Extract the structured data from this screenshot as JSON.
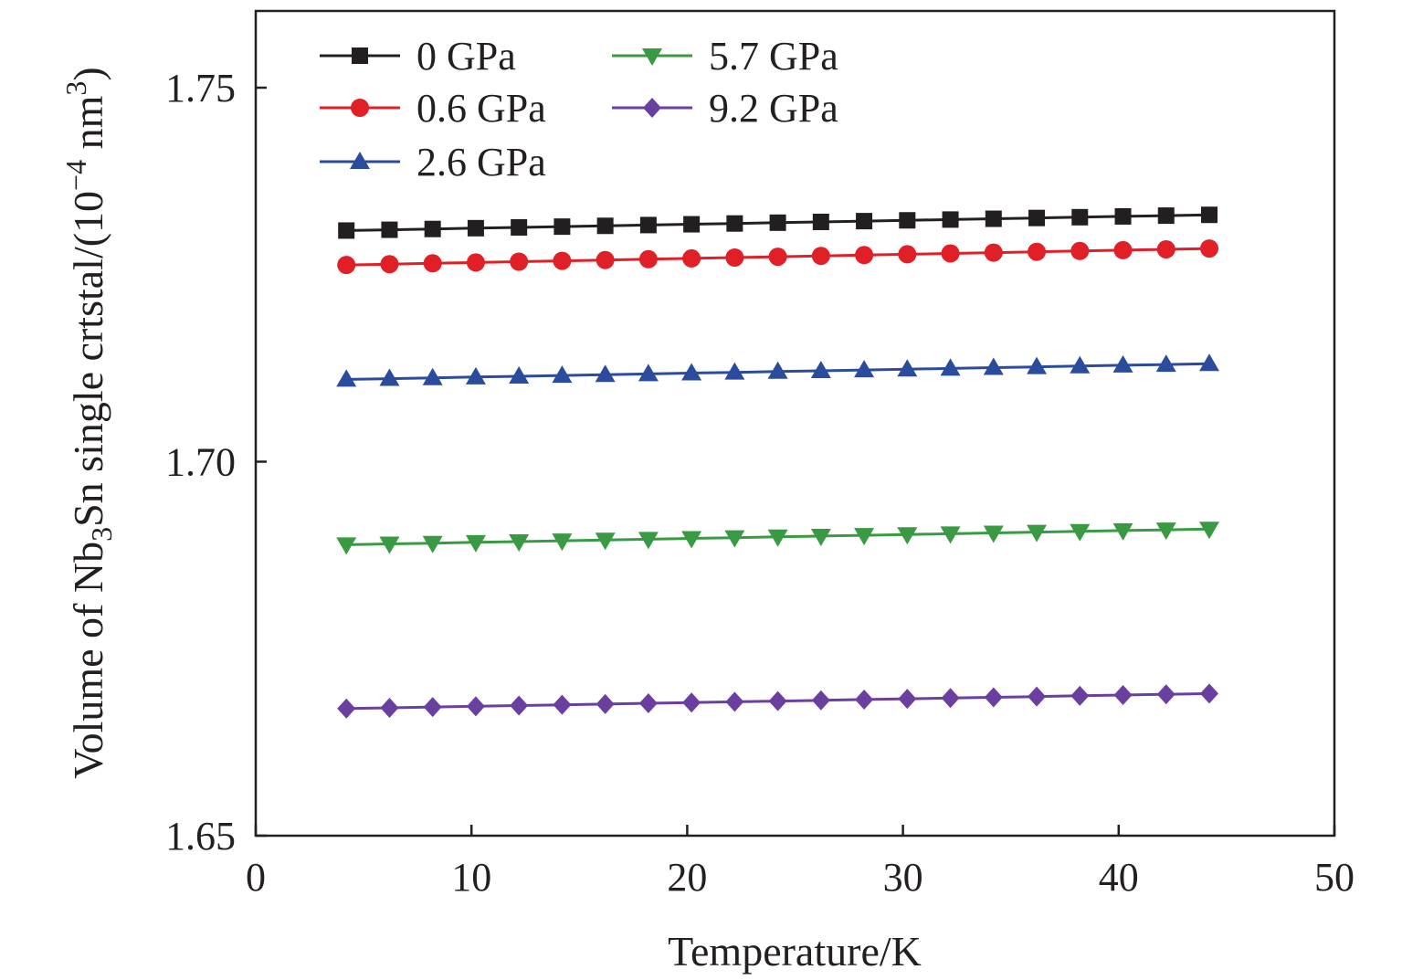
{
  "chart_data": {
    "type": "line",
    "xlabel": "Temperature/K",
    "ylabel": {
      "prefix": "Volume of Nb",
      "sub": "3",
      "mid": "Sn single crtstal/(10",
      "sup": "−4",
      "mid2": " nm",
      "sup2": "3",
      "suffix": ")"
    },
    "xlim": [
      0,
      50
    ],
    "ylim": [
      1.65,
      1.76
    ],
    "xticks": [
      0,
      10,
      20,
      30,
      40,
      50
    ],
    "xtick_labels": [
      "0",
      "10",
      "20",
      "30",
      "40",
      "50"
    ],
    "yticks": [
      1.65,
      1.7,
      1.75
    ],
    "ytick_labels": [
      "1.65",
      "1.70",
      "1.75"
    ],
    "grid": false,
    "legend_position": "top-left",
    "x": [
      4.2,
      6.2,
      8.2,
      10.2,
      12.2,
      14.2,
      16.2,
      18.2,
      20.2,
      22.2,
      24.2,
      26.2,
      28.2,
      30.2,
      32.2,
      34.2,
      36.2,
      38.2,
      40.2,
      42.2,
      44.2
    ],
    "series": [
      {
        "name": "0 GPa",
        "color": "#231f20",
        "marker": "square",
        "y_start": 1.7309,
        "y_end": 1.733
      },
      {
        "name": "0.6 GPa",
        "color": "#e01f26",
        "marker": "circle",
        "y_start": 1.7263,
        "y_end": 1.7285
      },
      {
        "name": "2.6 GPa",
        "color": "#2b4c9c",
        "marker": "triangle-up",
        "y_start": 1.711,
        "y_end": 1.7131
      },
      {
        "name": "5.7 GPa",
        "color": "#3a9a44",
        "marker": "triangle-down",
        "y_start": 1.6889,
        "y_end": 1.691
      },
      {
        "name": "9.2 GPa",
        "color": "#6b3fa0",
        "marker": "diamond",
        "y_start": 1.667,
        "y_end": 1.669
      }
    ]
  }
}
